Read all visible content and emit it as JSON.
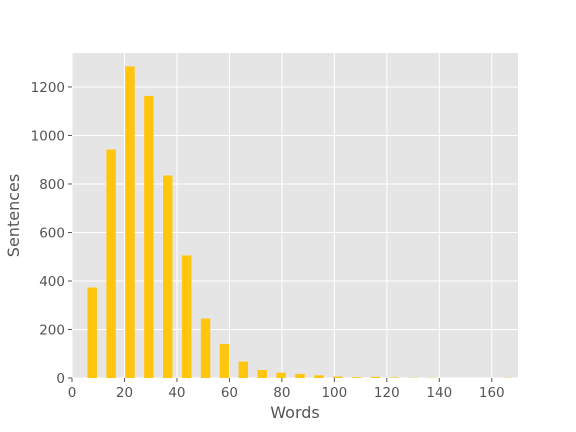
{
  "chart_data": {
    "type": "bar",
    "title": "",
    "xlabel": "Words",
    "ylabel": "Sentences",
    "xlim": [
      0,
      170
    ],
    "ylim": [
      0,
      1340
    ],
    "x_ticks": [
      0,
      20,
      40,
      60,
      80,
      100,
      120,
      140,
      160
    ],
    "y_ticks": [
      0,
      200,
      400,
      600,
      800,
      1000,
      1200
    ],
    "grid": true,
    "bar_width": 3.6,
    "bar_color": "#FFC60D",
    "background_color": "#E5E5E5",
    "grid_color": "#FFFFFF",
    "x": [
      7.7,
      14.9,
      22.1,
      29.3,
      36.5,
      43.7,
      50.9,
      58.1,
      65.3,
      72.5,
      79.7,
      86.9,
      94.1,
      101.3,
      108.5,
      115.7,
      122.9,
      130.1,
      137.3,
      144.5,
      151.7,
      158.9,
      166.1
    ],
    "values": [
      373,
      942,
      1285,
      1163,
      835,
      505,
      245,
      140,
      68,
      33,
      22,
      17,
      11,
      6,
      3,
      5,
      2,
      1,
      1,
      0,
      0,
      0,
      1
    ]
  }
}
